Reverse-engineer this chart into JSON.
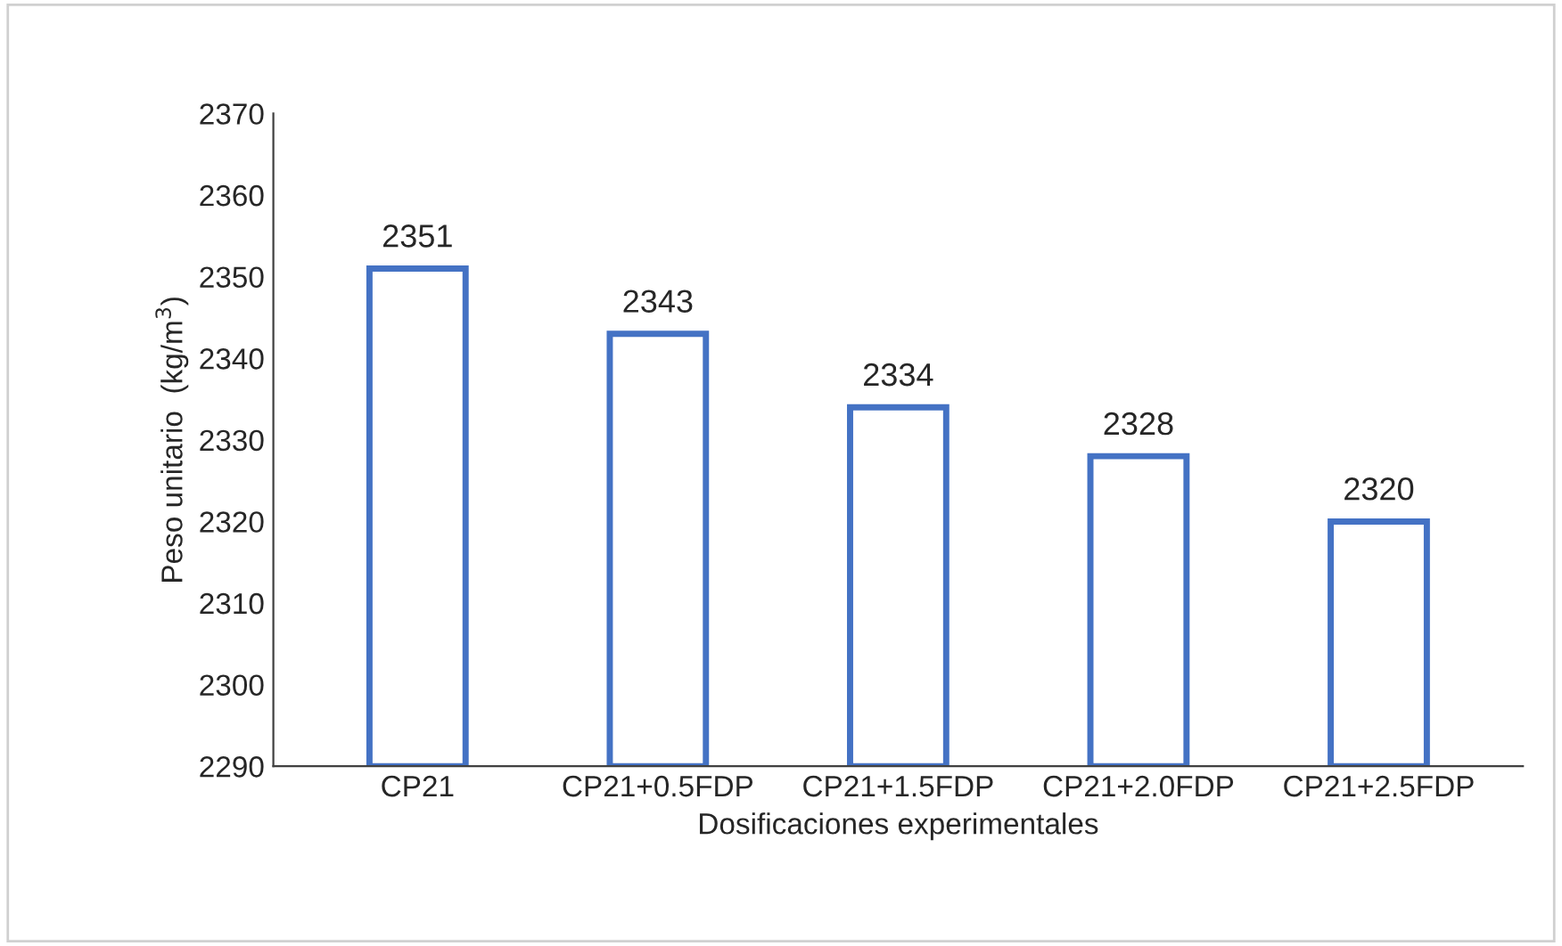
{
  "chart_data": {
    "type": "bar",
    "categories": [
      "CP21",
      "CP21+0.5FDP",
      "CP21+1.5FDP",
      "CP21+2.0FDP",
      "CP21+2.5FDP"
    ],
    "values": [
      2351,
      2343,
      2334,
      2328,
      2320
    ],
    "color": "#4472c4",
    "xlabel": "Dosificaciones experimentales",
    "ylabel": "Peso unitario  (kg/m$^{3}$)",
    "ylim": [
      2290,
      2370
    ],
    "yticks": [
      2290,
      2300,
      2310,
      2320,
      2330,
      2340,
      2350,
      2360,
      2370
    ],
    "data_labels": true,
    "grid": false,
    "legend": false
  }
}
